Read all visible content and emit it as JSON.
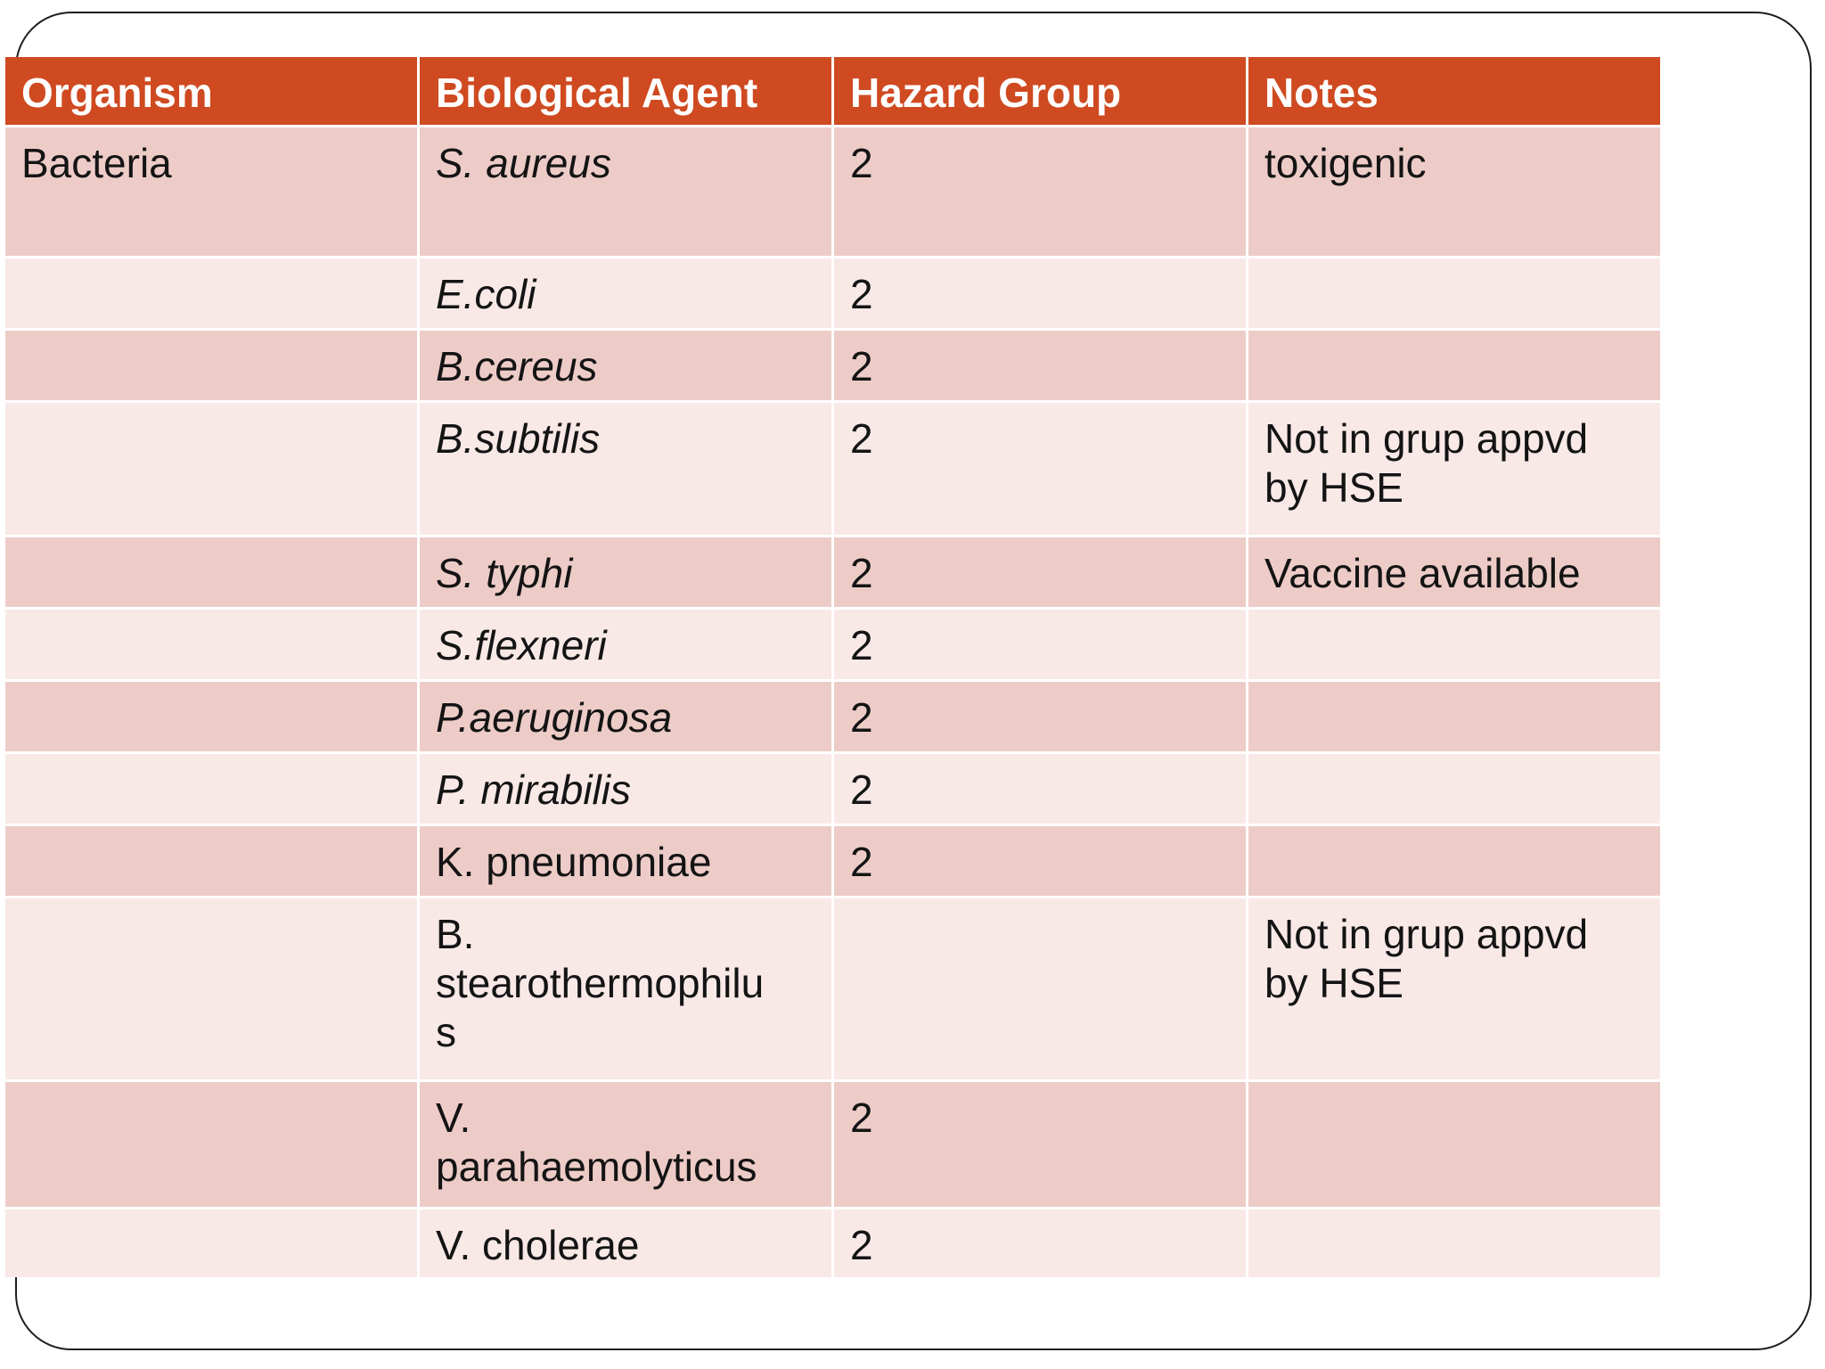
{
  "slide": {
    "background": "#ffffff",
    "frame_border_color": "#1e1e1e"
  },
  "colors": {
    "header_bg": "#cf4a20",
    "header_text": "#ffffff",
    "row_dark": "#edccc8",
    "row_light": "#f8e9e7",
    "body_text": "#141414"
  },
  "table": {
    "columns": [
      "Organism",
      "Biological Agent",
      "Hazard Group",
      "Notes"
    ],
    "rows": [
      {
        "organism": "Bacteria",
        "agent": "S. aureus",
        "agent_italic": true,
        "hazard": "2",
        "notes": "toxigenic"
      },
      {
        "organism": "",
        "agent": "E.coli",
        "agent_italic": true,
        "hazard": "2",
        "notes": ""
      },
      {
        "organism": "",
        "agent": "B.cereus",
        "agent_italic": true,
        "hazard": "2",
        "notes": ""
      },
      {
        "organism": "",
        "agent": "B.subtilis",
        "agent_italic": true,
        "hazard": "2",
        "notes": "Not in grup appvd by HSE"
      },
      {
        "organism": "",
        "agent": "S. typhi",
        "agent_italic": true,
        "hazard": "2",
        "notes": "Vaccine available"
      },
      {
        "organism": "",
        "agent": "S.flexneri",
        "agent_italic": true,
        "hazard": "2",
        "notes": ""
      },
      {
        "organism": "",
        "agent": "P.aeruginosa",
        "agent_italic": true,
        "hazard": "2",
        "notes": ""
      },
      {
        "organism": "",
        "agent": "P. mirabilis",
        "agent_italic": true,
        "hazard": "2",
        "notes": ""
      },
      {
        "organism": "",
        "agent": "K. pneumoniae",
        "agent_italic": false,
        "hazard": "2",
        "notes": ""
      },
      {
        "organism": "",
        "agent": "B. stearothermophilus",
        "agent_italic": false,
        "hazard": "",
        "notes": "Not in grup appvd by HSE"
      },
      {
        "organism": "",
        "agent": "V. parahaemolyticus",
        "agent_italic": false,
        "hazard": "2",
        "notes": ""
      },
      {
        "organism": "",
        "agent": "V. cholerae",
        "agent_italic": false,
        "hazard": "2",
        "notes": ""
      }
    ]
  }
}
